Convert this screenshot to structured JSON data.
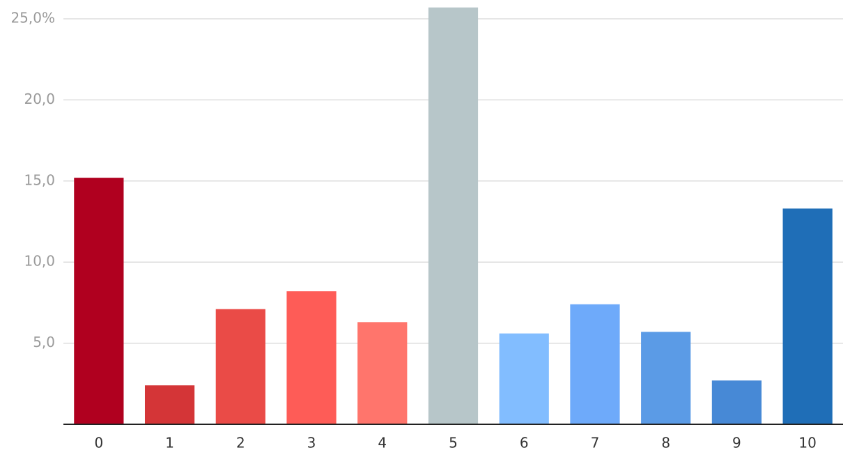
{
  "chart_data": {
    "type": "bar",
    "categories": [
      "0",
      "1",
      "2",
      "3",
      "4",
      "5",
      "6",
      "7",
      "8",
      "9",
      "10"
    ],
    "values": [
      15.2,
      2.4,
      7.1,
      8.2,
      6.3,
      25.7,
      5.6,
      7.4,
      5.7,
      2.7,
      13.3
    ],
    "colors": [
      "#b0001f",
      "#d43537",
      "#ea4b47",
      "#fe5c57",
      "#ff756c",
      "#b7c6c9",
      "#82bdff",
      "#6eaafa",
      "#5b9be6",
      "#4789d6",
      "#1f6eb7"
    ],
    "ylim": [
      0,
      26
    ],
    "yticks": [
      {
        "value": 5,
        "label": "5,0"
      },
      {
        "value": 10,
        "label": "10,0"
      },
      {
        "value": 15,
        "label": "15,0"
      },
      {
        "value": 20,
        "label": "20,0"
      },
      {
        "value": 25,
        "label": "25,0%"
      }
    ],
    "grid": true
  }
}
